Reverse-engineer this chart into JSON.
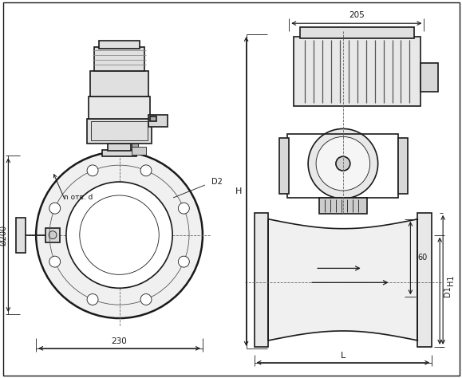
{
  "bg_color": "#ffffff",
  "line_color": "#1a1a1a",
  "line_width": 1.2,
  "thin_line": 0.6,
  "thick_line": 1.8,
  "fig_width": 5.79,
  "fig_height": 4.74,
  "dpi": 100,
  "annotations": {
    "dim_205": "205",
    "dim_230": "230",
    "dim_200": "Ø200",
    "dim_H": "H",
    "dim_H1": "H1",
    "dim_D1": "D1",
    "dim_D2": "D2",
    "dim_n_otv_d": "n отв. d",
    "dim_60": "60",
    "dim_L": "L"
  }
}
